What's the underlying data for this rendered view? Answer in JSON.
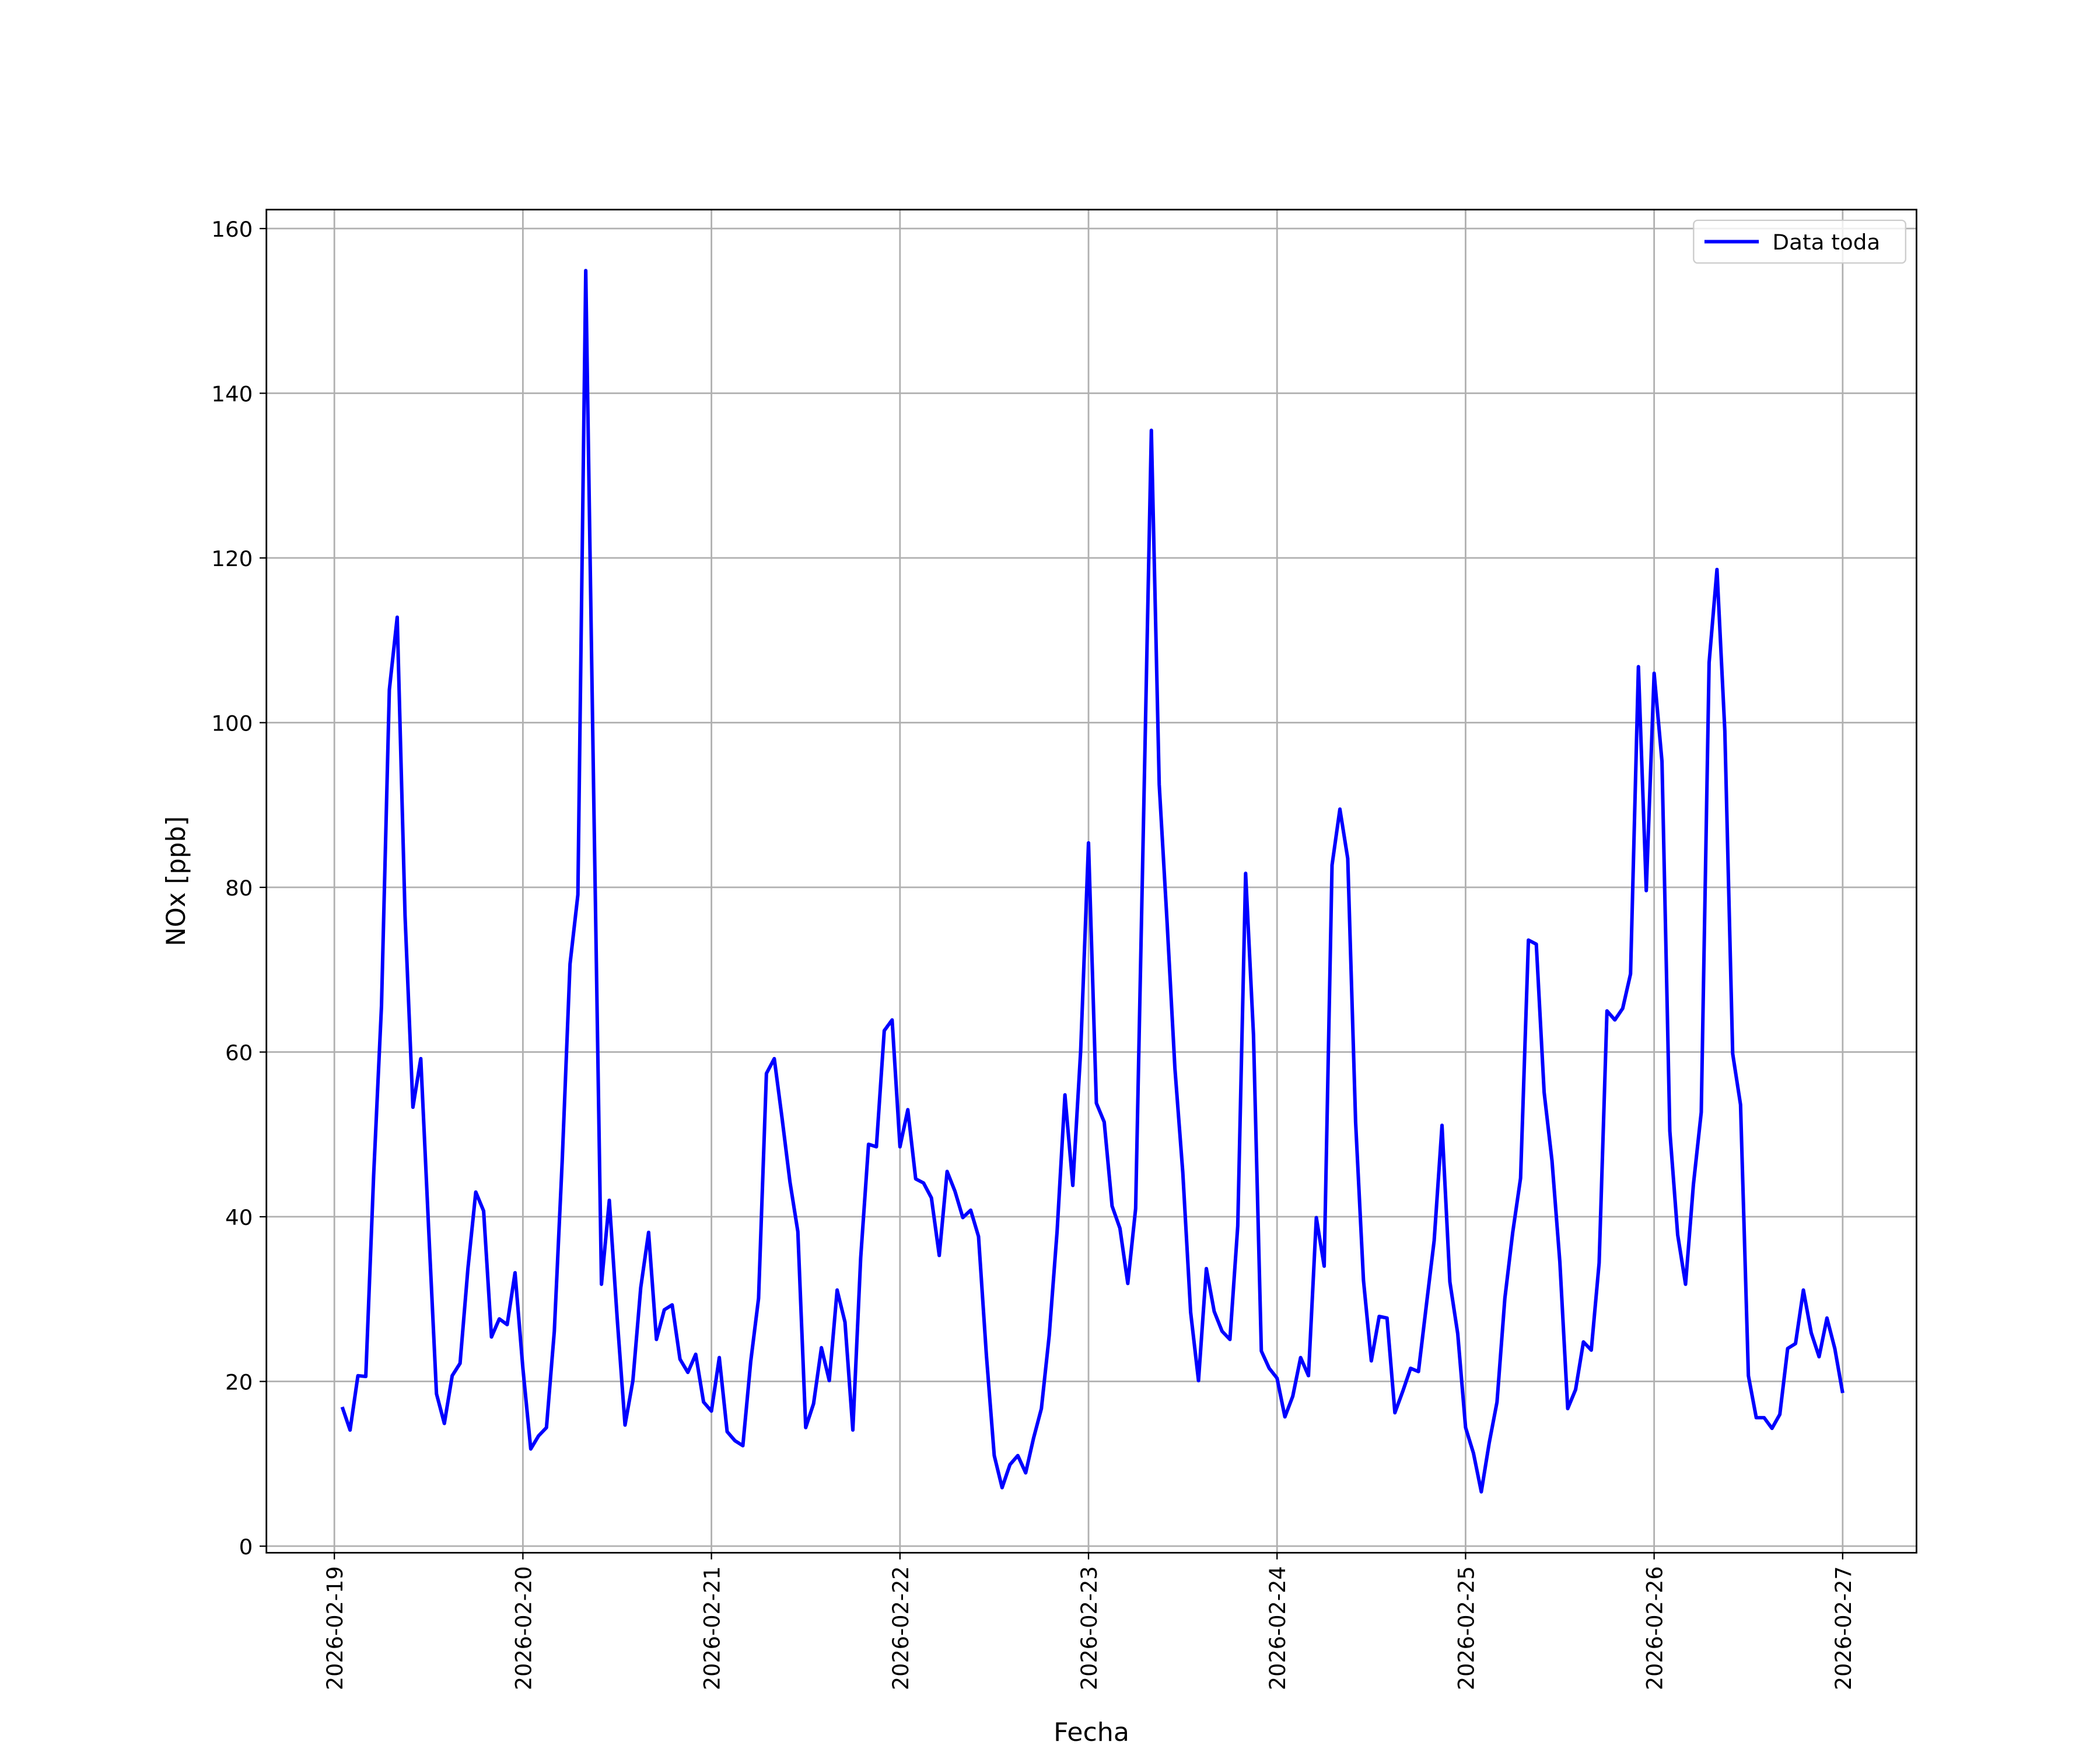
{
  "chart_data": {
    "type": "line",
    "xlabel": "Fecha",
    "ylabel": "NOx [ppb]",
    "x": [
      1,
      2,
      3,
      4,
      5,
      6,
      7,
      8,
      9,
      10,
      11,
      12,
      13,
      14,
      15,
      16,
      17,
      18,
      19,
      20,
      21,
      22,
      23,
      24,
      25,
      26,
      27,
      28,
      29,
      30,
      31,
      32,
      33,
      34,
      35,
      36,
      37,
      38,
      39,
      40,
      41,
      42,
      43,
      44,
      45,
      46,
      47,
      48,
      49,
      50,
      51,
      52,
      53,
      54,
      55,
      56,
      57,
      58,
      59,
      60,
      61,
      62,
      63,
      64,
      65,
      66,
      67,
      68,
      69,
      70,
      71,
      72,
      73,
      74,
      75,
      76,
      77,
      78,
      79,
      80,
      81,
      82,
      83,
      84,
      85,
      86,
      87,
      88,
      89,
      90,
      91,
      92,
      93,
      94,
      95,
      96,
      97,
      98,
      99,
      100,
      101,
      102,
      103,
      104,
      105,
      106,
      107,
      108,
      109,
      110,
      111,
      112,
      113,
      114,
      115,
      116,
      117,
      118,
      119,
      120,
      121,
      122,
      123,
      124,
      125,
      126,
      127,
      128,
      129,
      130,
      131,
      132,
      133,
      134,
      135,
      136,
      137,
      138,
      139,
      140,
      141,
      142,
      143,
      144,
      145,
      146,
      147,
      148,
      149,
      150,
      151,
      152,
      153,
      154,
      155,
      156,
      157,
      158,
      159,
      160,
      161,
      162,
      163,
      164,
      165,
      166,
      167,
      168,
      169,
      170,
      171,
      172,
      173,
      174,
      175,
      176,
      177,
      178,
      179,
      180,
      181,
      182,
      183,
      184,
      185,
      186,
      187,
      188,
      189,
      190,
      191,
      192
    ],
    "series": [
      {
        "name": "Data toda",
        "color": "#0000ff",
        "values": [
          16.9,
          14.1,
          20.7,
          20.6,
          45,
          65.6,
          104,
          112.8,
          76.5,
          53.3,
          59.2,
          38.6,
          18.5,
          14.9,
          20.7,
          22.2,
          33.7,
          43,
          40.7,
          25.4,
          27.6,
          26.9,
          33.2,
          21.6,
          11.8,
          13.4,
          14.4,
          26.1,
          46.7,
          70.7,
          79.1,
          154.9,
          92,
          31.8,
          42,
          27.7,
          14.7,
          20.1,
          31.4,
          38.1,
          25.1,
          28.7,
          29.3,
          22.7,
          21.1,
          23.3,
          17.5,
          16.4,
          22.9,
          13.9,
          12.8,
          12.2,
          22.4,
          30.1,
          57.4,
          59.2,
          51.9,
          44.2,
          38.2,
          14.4,
          17.3,
          24.1,
          20.1,
          31.1,
          27.2,
          14.1,
          35,
          48.8,
          48.5,
          62.6,
          63.9,
          48.5,
          53,
          44.6,
          44.1,
          42.3,
          35.3,
          45.5,
          43.1,
          39.9,
          40.8,
          37.6,
          23.2,
          11,
          7.1,
          9.9,
          11,
          8.9,
          13.1,
          16.7,
          25.6,
          38.2,
          54.8,
          43.8,
          60.1,
          85.4,
          53.8,
          51.5,
          41.3,
          38.6,
          31.9,
          41,
          88,
          135.5,
          92.5,
          75.8,
          58,
          45.4,
          28.4,
          20.1,
          33.7,
          28.5,
          26.1,
          25.1,
          38.9,
          81.7,
          62.1,
          23.7,
          21.6,
          20.4,
          15.7,
          18.2,
          22.9,
          20.7,
          39.9,
          34,
          82.7,
          89.5,
          83.5,
          51.5,
          32.3,
          22.5,
          27.9,
          27.7,
          16.2,
          18.8,
          21.6,
          21.2,
          29.2,
          37.1,
          51.1,
          32.1,
          25.8,
          14.4,
          11.3,
          6.6,
          12.5,
          17.5,
          30.1,
          38.1,
          44.7,
          73.6,
          73.1,
          55.1,
          46.8,
          34.5,
          16.7,
          19,
          24.8,
          23.8,
          34.4,
          65,
          63.9,
          65.3,
          69.5,
          106.8,
          79.6,
          106,
          95.3,
          50.4,
          37.8,
          31.8,
          43.9,
          52.7,
          107.3,
          118.6,
          99,
          59.8,
          53.6,
          20.7,
          15.6,
          15.6,
          14.3,
          16,
          24,
          24.6,
          31.1,
          25.9,
          23,
          27.7,
          24,
          18.6
        ]
      }
    ],
    "xlim": [
      -8.65,
      201.4
    ],
    "xticks": [
      {
        "value": 0,
        "label": "2026-02-19"
      },
      {
        "value": 24,
        "label": "2026-02-20"
      },
      {
        "value": 48,
        "label": "2026-02-21"
      },
      {
        "value": 72,
        "label": "2026-02-22"
      },
      {
        "value": 96,
        "label": "2026-02-23"
      },
      {
        "value": 120,
        "label": "2026-02-24"
      },
      {
        "value": 144,
        "label": "2026-02-25"
      },
      {
        "value": 168,
        "label": "2026-02-26"
      },
      {
        "value": 192,
        "label": "2026-02-27"
      }
    ],
    "ylim": [
      -0.8,
      162.3
    ],
    "yticks": [
      0,
      20,
      40,
      60,
      80,
      100,
      120,
      140,
      160
    ],
    "grid": true,
    "legend": "upper right"
  }
}
